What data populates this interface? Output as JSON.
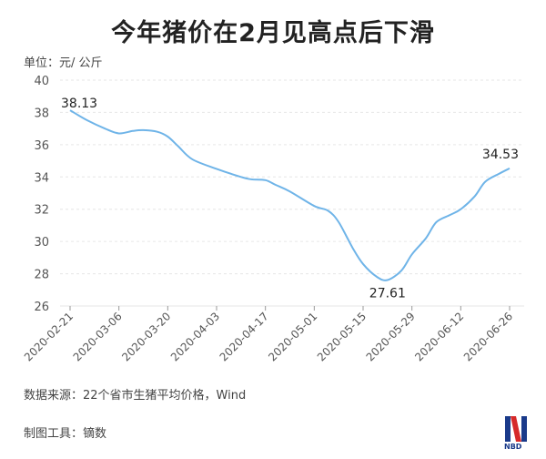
{
  "chart_data": {
    "type": "line",
    "title": "今年猪价在2月见高点后下滑",
    "ylabel": "单位：元/ 公斤",
    "ylim": [
      26,
      40
    ],
    "yticks": [
      26,
      28,
      30,
      32,
      34,
      36,
      38,
      40
    ],
    "xticks": [
      "2020-02-21",
      "2020-03-06",
      "2020-03-20",
      "2020-04-03",
      "2020-04-17",
      "2020-05-01",
      "2020-05-15",
      "2020-05-29",
      "2020-06-12",
      "2020-06-26"
    ],
    "grid": "horizontal",
    "line_color": "#6fb4e8",
    "series": [
      {
        "x": [
          "2020-02-21",
          "2020-02-26",
          "2020-03-02",
          "2020-03-06",
          "2020-03-10",
          "2020-03-13",
          "2020-03-17",
          "2020-03-20",
          "2020-03-23",
          "2020-03-27",
          "2020-04-03",
          "2020-04-10",
          "2020-04-13",
          "2020-04-17",
          "2020-04-20",
          "2020-04-24",
          "2020-05-01",
          "2020-05-05",
          "2020-05-08",
          "2020-05-12",
          "2020-05-15",
          "2020-05-19",
          "2020-05-22",
          "2020-05-26",
          "2020-05-29",
          "2020-06-02",
          "2020-06-05",
          "2020-06-09",
          "2020-06-12",
          "2020-06-16",
          "2020-06-19",
          "2020-06-23",
          "2020-06-26"
        ],
        "y": [
          38.13,
          37.5,
          37.0,
          36.7,
          36.85,
          36.9,
          36.8,
          36.5,
          35.9,
          35.1,
          34.5,
          34.0,
          33.85,
          33.8,
          33.5,
          33.1,
          32.2,
          31.9,
          31.2,
          29.6,
          28.6,
          27.8,
          27.61,
          28.2,
          29.2,
          30.2,
          31.2,
          31.65,
          32.0,
          32.8,
          33.7,
          34.2,
          34.53
        ]
      }
    ],
    "annotations": [
      {
        "x": "2020-02-21",
        "y": 38.13,
        "text": "38.13"
      },
      {
        "x": "2020-05-22",
        "y": 27.61,
        "text": "27.61"
      },
      {
        "x": "2020-06-26",
        "y": 34.53,
        "text": "34.53"
      }
    ]
  },
  "footer": {
    "source": "数据来源：22个省市生猪平均价格，Wind",
    "tool": "制图工具：镝数",
    "logo_text": "NBD"
  }
}
